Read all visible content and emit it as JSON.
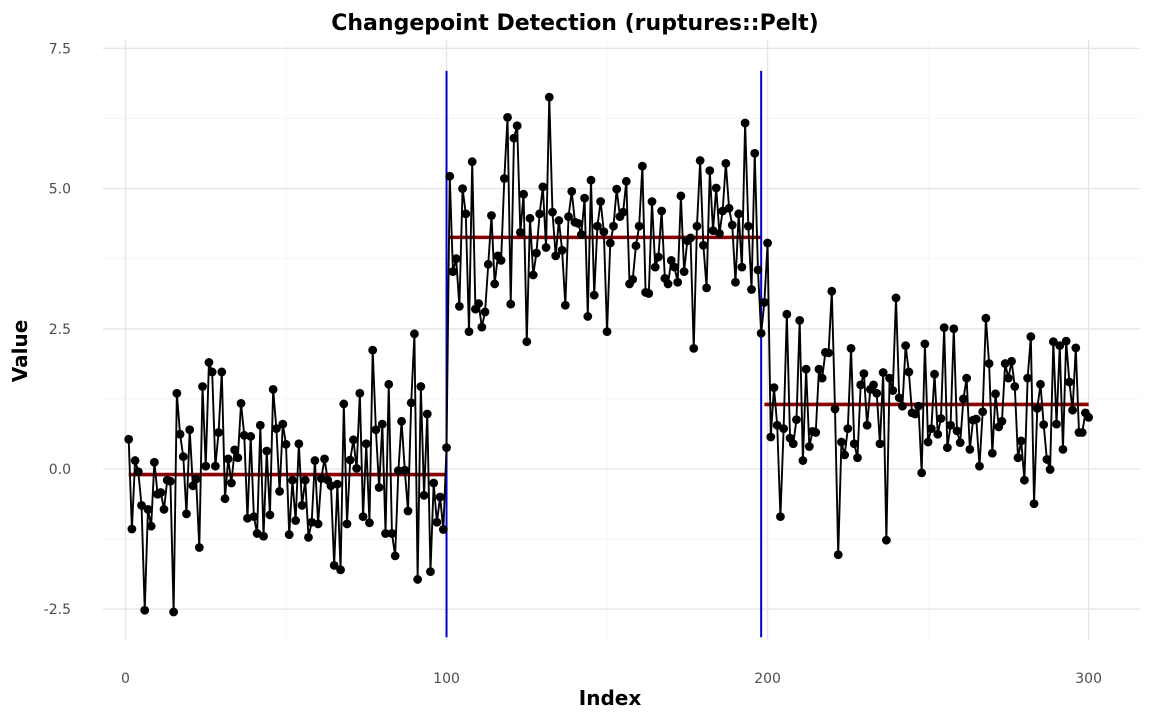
{
  "chart_data": {
    "type": "line",
    "title": "Changepoint Detection (ruptures::Pelt)",
    "xlabel": "Index",
    "ylabel": "Value",
    "xlim": [
      -7,
      316
    ],
    "ylim": [
      -3.05,
      7.65
    ],
    "x_ticks": [
      0,
      100,
      200,
      300
    ],
    "x_tick_labels": [
      "0",
      "100",
      "200",
      "300"
    ],
    "y_ticks": [
      -2.5,
      0,
      2.5,
      5,
      7.5
    ],
    "y_tick_labels": [
      "-2.5",
      "0.0",
      "2.5",
      "5.0",
      "7.5"
    ],
    "grid": true,
    "legend": "none",
    "colors": {
      "series": "#000000",
      "changepoint": "#0000cc",
      "segment_mean": "#8b0000"
    },
    "series": [
      {
        "x_start": 1,
        "values": [
          0.53,
          -1.07,
          0.15,
          -0.05,
          -0.65,
          -2.52,
          -0.72,
          -1.02,
          0.12,
          -0.45,
          -0.42,
          -0.72,
          -0.2,
          -0.22,
          -2.55,
          1.35,
          0.62,
          0.22,
          -0.8,
          0.7,
          -0.3,
          -0.18,
          -1.4,
          1.47,
          0.05,
          1.9,
          1.73,
          0.05,
          0.65,
          1.73,
          -0.53,
          0.18,
          -0.25,
          0.34,
          0.2,
          1.17,
          0.6,
          -0.88,
          0.58,
          -0.85,
          -1.15,
          0.78,
          -1.2,
          0.32,
          -0.82,
          1.42,
          0.72,
          -0.4,
          0.8,
          0.44,
          -1.17,
          -0.2,
          -0.92,
          0.45,
          -0.65,
          -0.2,
          -1.22,
          -0.95,
          0.15,
          -0.98,
          -0.17,
          0.18,
          -0.2,
          -0.3,
          -1.72,
          -0.27,
          -1.8,
          1.16,
          -0.98,
          0.16,
          0.52,
          0.01,
          1.35,
          -0.85,
          0.45,
          -0.96,
          2.12,
          0.7,
          -0.33,
          0.8,
          -1.15,
          1.51,
          -1.15,
          -1.55,
          -0.03,
          0.85,
          -0.02,
          -0.75,
          1.18,
          2.41,
          -1.97,
          1.47,
          -0.47,
          0.98,
          -1.83,
          -0.25,
          -0.95,
          -0.5,
          -1.08,
          0.38,
          5.22,
          3.52,
          3.75,
          2.9,
          5.0,
          4.55,
          2.45,
          5.48,
          2.85,
          2.95,
          2.53,
          2.8,
          3.65,
          4.52,
          3.3,
          3.8,
          3.72,
          5.18,
          6.27,
          2.94,
          5.9,
          6.12,
          4.22,
          4.9,
          2.27,
          4.47,
          3.46,
          3.85,
          4.55,
          5.03,
          3.95,
          6.63,
          4.58,
          3.8,
          4.43,
          3.9,
          2.92,
          4.5,
          4.95,
          4.4,
          4.38,
          4.18,
          4.83,
          2.72,
          5.15,
          3.1,
          4.33,
          4.77,
          4.23,
          2.45,
          4.03,
          4.33,
          4.99,
          4.5,
          4.58,
          5.13,
          3.3,
          3.38,
          3.98,
          4.33,
          5.4,
          3.15,
          3.13,
          4.77,
          3.6,
          3.78,
          4.6,
          3.4,
          3.3,
          3.72,
          3.6,
          3.33,
          4.87,
          3.52,
          4.07,
          4.12,
          2.15,
          4.33,
          5.5,
          3.99,
          3.23,
          5.32,
          4.25,
          5.01,
          4.2,
          4.6,
          5.45,
          4.65,
          4.35,
          3.33,
          4.55,
          3.6,
          6.17,
          4.33,
          3.2,
          5.63,
          3.55,
          2.42,
          2.97,
          4.03,
          0.57,
          1.45,
          0.78,
          -0.85,
          0.72,
          2.76,
          0.55,
          0.45,
          0.88,
          2.65,
          0.15,
          1.78,
          0.4,
          0.67,
          0.65,
          1.78,
          1.62,
          2.08,
          2.07,
          3.17,
          1.07,
          -1.53,
          0.48,
          0.25,
          0.72,
          2.15,
          0.45,
          0.2,
          1.5,
          1.7,
          0.78,
          1.42,
          1.5,
          1.35,
          0.45,
          1.72,
          -1.27,
          1.62,
          1.4,
          3.05,
          1.27,
          1.12,
          2.2,
          1.73,
          1.0,
          0.98,
          1.12,
          -0.07,
          2.23,
          0.48,
          0.72,
          1.69,
          0.62,
          0.9,
          2.52,
          0.38,
          0.78,
          2.5,
          0.68,
          0.47,
          1.25,
          1.62,
          0.35,
          0.87,
          0.89,
          0.05,
          1.02,
          2.69,
          1.88,
          0.28,
          1.34,
          0.75,
          0.85,
          1.88,
          1.62,
          1.92,
          1.47,
          0.2,
          0.5,
          -0.2,
          1.62,
          2.36,
          -0.62,
          1.08,
          1.51,
          0.79,
          0.17,
          -0.01,
          2.27,
          0.8,
          2.2,
          0.35,
          2.28,
          1.55,
          1.05,
          2.16,
          0.65,
          0.65,
          1.0,
          0.92
        ]
      }
    ],
    "changepoints": [
      100,
      198
    ],
    "segments": [
      {
        "x_start": 1,
        "x_end": 100,
        "mean": -0.1
      },
      {
        "x_start": 101,
        "x_end": 198,
        "mean": 4.13
      },
      {
        "x_start": 199,
        "x_end": 300,
        "mean": 1.15
      }
    ],
    "changepoint_y_range": [
      -3.0,
      7.1
    ]
  }
}
